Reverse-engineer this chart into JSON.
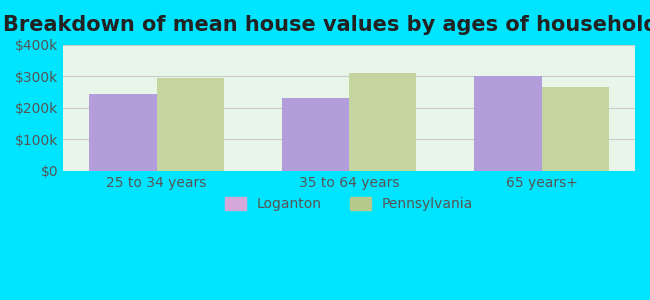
{
  "title": "Breakdown of mean house values by ages of householders",
  "categories": [
    "25 to 34 years",
    "35 to 64 years",
    "65 years+"
  ],
  "loganton_values": [
    245000,
    230000,
    300000
  ],
  "pennsylvania_values": [
    295000,
    310000,
    265000
  ],
  "loganton_color": "#b39ddb",
  "pennsylvania_color": "#c5d5a0",
  "background_outer": "#00e5ff",
  "background_inner": "#e8f5e9",
  "ylim": [
    0,
    400000
  ],
  "yticks": [
    0,
    100000,
    200000,
    300000,
    400000
  ],
  "ytick_labels": [
    "$0",
    "$100k",
    "$200k",
    "$300k",
    "$400k"
  ],
  "legend_labels": [
    "Loganton",
    "Pennsylvania"
  ],
  "legend_marker_colors": [
    "#d4a8d8",
    "#b5c98a"
  ],
  "title_fontsize": 15,
  "tick_fontsize": 10,
  "bar_width": 0.35,
  "grid_color": "#cccccc"
}
